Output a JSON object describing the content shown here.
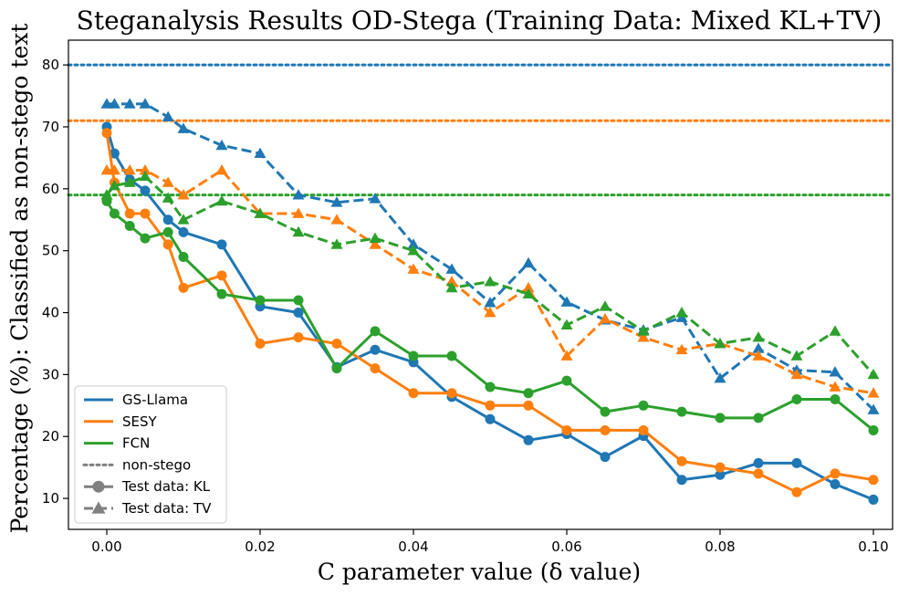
{
  "chart_data": {
    "type": "line",
    "title": "Steganalysis Results OD-Stega (Training Data: Mixed KL+TV)",
    "xlabel": "C parameter value (δ value)",
    "ylabel": "Percentage (%): Classified as non-stego text",
    "xlim": [
      -0.005,
      0.1025
    ],
    "ylim": [
      5,
      84
    ],
    "xticks": [
      0.0,
      0.02,
      0.04,
      0.06,
      0.08,
      0.1
    ],
    "xtick_labels": [
      "0.00",
      "0.02",
      "0.04",
      "0.06",
      "0.08",
      "0.10"
    ],
    "yticks": [
      10,
      20,
      30,
      40,
      50,
      60,
      70,
      80
    ],
    "ytick_labels": [
      "10",
      "20",
      "30",
      "40",
      "50",
      "60",
      "70",
      "80"
    ],
    "grid": false,
    "legend_position": "bottom-left",
    "colors": {
      "GS-Llama": "#1f77b4",
      "SESY": "#ff7f0e",
      "FCN": "#2ca02c",
      "non_stego": "#888888"
    },
    "x": [
      0.0,
      0.001,
      0.003,
      0.005,
      0.008,
      0.01,
      0.015,
      0.02,
      0.025,
      0.03,
      0.035,
      0.04,
      0.045,
      0.05,
      0.055,
      0.06,
      0.065,
      0.07,
      0.075,
      0.08,
      0.085,
      0.09,
      0.095,
      0.1
    ],
    "series": [
      {
        "name": "GS-Llama",
        "test_data": "KL",
        "color": "#1f77b4",
        "marker": "circle",
        "linestyle": "solid",
        "values": [
          70,
          65.7,
          61.5,
          59.7,
          55,
          53,
          51,
          41,
          40,
          31.2,
          34,
          32,
          26.4,
          22.8,
          19.4,
          20.4,
          16.7,
          20.1,
          13,
          13.8,
          15.7,
          15.7,
          12.3,
          9.8
        ]
      },
      {
        "name": "GS-Llama",
        "test_data": "TV",
        "color": "#1f77b4",
        "marker": "triangle",
        "linestyle": "dashed",
        "values": [
          73.7,
          73.7,
          73.7,
          73.7,
          71.6,
          69.7,
          67,
          65.7,
          59,
          57.8,
          58.4,
          51,
          47,
          41.6,
          48,
          41.7,
          38.8,
          37.2,
          39.2,
          29.4,
          34.2,
          30.7,
          30.4,
          24.3
        ]
      },
      {
        "name": "SESY",
        "test_data": "KL",
        "color": "#ff7f0e",
        "marker": "circle",
        "linestyle": "solid",
        "values": [
          69,
          61,
          56,
          56,
          51,
          44,
          46,
          35,
          36,
          35,
          31,
          27,
          27,
          25,
          25,
          21,
          21,
          21,
          16,
          15,
          14,
          11,
          14,
          13
        ]
      },
      {
        "name": "SESY",
        "test_data": "TV",
        "color": "#ff7f0e",
        "marker": "triangle",
        "linestyle": "dashed",
        "values": [
          63,
          63,
          63,
          63,
          61,
          59,
          63,
          56,
          56,
          55,
          51,
          47,
          45,
          40,
          44,
          33,
          39,
          36,
          34,
          35,
          33,
          30,
          28,
          27
        ]
      },
      {
        "name": "FCN",
        "test_data": "KL",
        "color": "#2ca02c",
        "marker": "circle",
        "linestyle": "solid",
        "values": [
          58,
          56,
          54,
          52,
          53,
          49,
          43,
          42,
          42,
          31,
          37,
          33,
          33,
          28,
          27,
          29,
          24,
          25,
          24,
          23,
          23,
          26,
          26,
          21
        ]
      },
      {
        "name": "FCN",
        "test_data": "TV",
        "color": "#2ca02c",
        "marker": "triangle",
        "linestyle": "dashed",
        "values": [
          59,
          60.5,
          61,
          62,
          58.5,
          55,
          58,
          56,
          53,
          51,
          52,
          50,
          44,
          45,
          43,
          38,
          41,
          37,
          40,
          35,
          36,
          33,
          37,
          30
        ]
      }
    ],
    "non_stego_lines": [
      {
        "name": "GS-Llama",
        "value": 80,
        "color": "#1f77b4"
      },
      {
        "name": "SESY",
        "value": 71,
        "color": "#ff7f0e"
      },
      {
        "name": "FCN",
        "value": 59,
        "color": "#2ca02c"
      }
    ],
    "legend": [
      {
        "label": "GS-Llama",
        "color": "#1f77b4",
        "style": "solid",
        "marker": "none"
      },
      {
        "label": "SESY",
        "color": "#ff7f0e",
        "style": "solid",
        "marker": "none"
      },
      {
        "label": "FCN",
        "color": "#2ca02c",
        "style": "solid",
        "marker": "none"
      },
      {
        "label": "non-stego",
        "color": "#808080",
        "style": "dotted",
        "marker": "none"
      },
      {
        "label": "Test data: KL",
        "color": "#808080",
        "style": "solid",
        "marker": "circle"
      },
      {
        "label": "Test data: TV",
        "color": "#808080",
        "style": "dashed",
        "marker": "triangle"
      }
    ]
  }
}
